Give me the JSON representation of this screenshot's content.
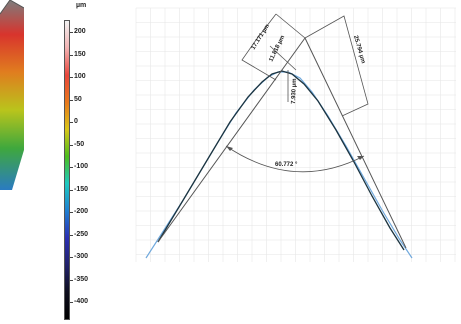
{
  "color_scale": {
    "unit": "µm",
    "ticks": [
      "200",
      "150",
      "100",
      "50",
      "0",
      "-50",
      "-100",
      "-150",
      "-200",
      "-250",
      "-300",
      "-350",
      "-400"
    ],
    "gradient_colors": [
      "#f2f2f2",
      "#f3b3b3",
      "#e8463c",
      "#e8781c",
      "#d9c619",
      "#4dbd1e",
      "#1ec9c0",
      "#1f7fd1",
      "#2a2fb3",
      "#22226b",
      "#0e0e1e",
      "#000000"
    ]
  },
  "surface_colors": [
    "#7d7d7d",
    "#d8342d",
    "#e07d1f",
    "#b9c41c",
    "#3fa83d",
    "#2a7bc2"
  ],
  "measurements": {
    "side_length_left": "17.171 µm",
    "chord_length": "11.818 µm",
    "tip_radius": "7.930 µm",
    "side_length_right": "25.794 µm",
    "apex_angle": "60.772 °"
  },
  "colors": {
    "profile_trace": "#1c3440",
    "fit_lines": "#555555",
    "raw_profile": "#6fa8dc",
    "grid": "#e6e6e6"
  }
}
